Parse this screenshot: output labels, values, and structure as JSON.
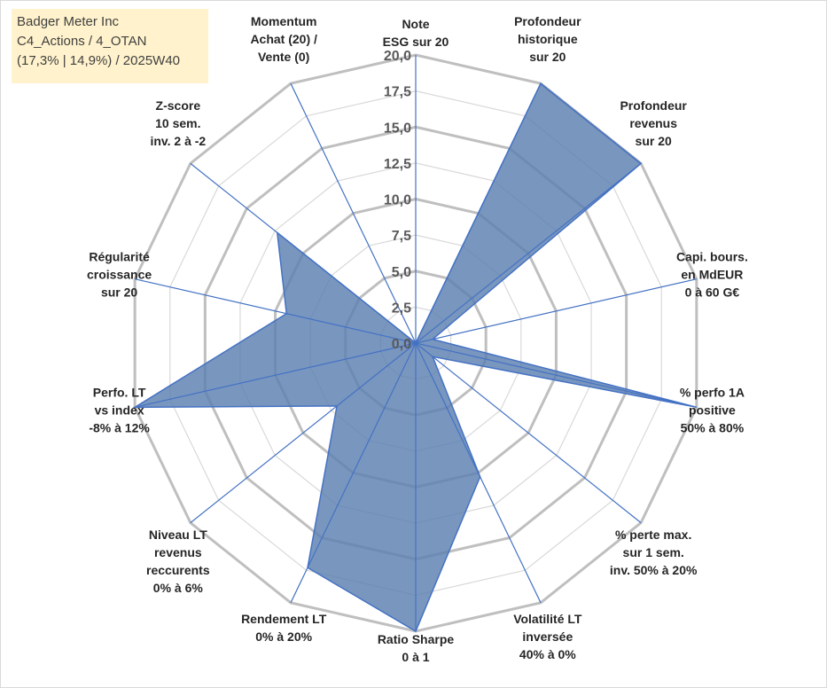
{
  "info_box": {
    "line1": "Badger Meter Inc",
    "line2": "C4_Actions / 4_OTAN",
    "line3": "(17,3% | 14,9%) / 2025W40"
  },
  "chart_data": {
    "type": "radar",
    "title": "",
    "range": [
      0,
      20
    ],
    "ticks": [
      "0,0",
      "2,5",
      "5,0",
      "7,5",
      "10,0",
      "12,5",
      "15,0",
      "17,5",
      "20,0"
    ],
    "tick_values": [
      0,
      2.5,
      5,
      7.5,
      10,
      12.5,
      15,
      17.5,
      20
    ],
    "grid_levels": [
      2.5,
      5,
      7.5,
      10,
      12.5,
      15,
      17.5,
      20
    ],
    "colors": {
      "fill": "#5b7fb0",
      "stroke": "#4472c4",
      "axis": "#4472c4",
      "grid_major": "#bfbfbf",
      "grid_minor": "#d9d9d9"
    },
    "categories": [
      [
        "Note",
        "ESG sur 20"
      ],
      [
        "Profondeur",
        "historique",
        "sur 20"
      ],
      [
        "Profondeur",
        "revenus",
        "sur 20"
      ],
      [
        "Capi. bours.",
        "en MdEUR",
        "0 à 60 G€"
      ],
      [
        "% perfo 1A",
        "positive",
        "50% à 80%"
      ],
      [
        "% perte max.",
        "sur 1 sem.",
        "inv. 50% à 20%"
      ],
      [
        "Volatilité LT",
        "inversée",
        "40% à 0%"
      ],
      [
        "Ratio Sharpe",
        "0 à 1"
      ],
      [
        "Rendement LT",
        "0% à 20%"
      ],
      [
        "Niveau LT",
        "revenus",
        "reccurents",
        "0% à 6%"
      ],
      [
        "Perfo. LT",
        "vs index",
        "-8% à 12%"
      ],
      [
        "Régularité",
        "croissance",
        "sur 20"
      ],
      [
        "Z-score",
        "10 sem.",
        "inv. 2 à -2"
      ],
      [
        "Momentum",
        "Achat (20) /",
        "Vente (0)"
      ]
    ],
    "series": [
      {
        "name": "Badger Meter Inc",
        "values": [
          0,
          20,
          20,
          1.2,
          20,
          1.5,
          10.3,
          20,
          17.3,
          7.0,
          20,
          9.2,
          12.3,
          0
        ]
      }
    ]
  }
}
